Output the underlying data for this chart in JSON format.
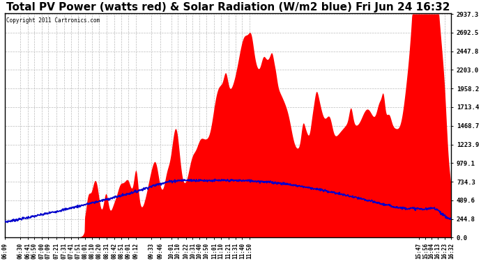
{
  "title": "Total PV Power (watts red) & Solar Radiation (W/m2 blue) Fri Jun 24 16:32",
  "copyright_text": "Copyright 2011 Cartronics.com",
  "yticks": [
    0.0,
    244.8,
    489.6,
    734.3,
    979.1,
    1223.9,
    1468.7,
    1713.4,
    1958.2,
    2203.0,
    2447.8,
    2692.5,
    2937.3
  ],
  "xtick_labels": [
    "06:09",
    "06:30",
    "06:41",
    "06:50",
    "07:00",
    "07:09",
    "07:21",
    "07:31",
    "07:41",
    "07:51",
    "08:01",
    "08:10",
    "08:20",
    "08:31",
    "08:42",
    "08:51",
    "09:01",
    "09:12",
    "09:33",
    "09:46",
    "10:01",
    "10:10",
    "10:22",
    "10:31",
    "10:40",
    "10:50",
    "11:01",
    "11:10",
    "11:21",
    "11:31",
    "11:40",
    "11:50",
    "15:47",
    "15:56",
    "16:04",
    "16:13",
    "16:23",
    "16:32"
  ],
  "bg_color": "#ffffff",
  "plot_bg_color": "#ffffff",
  "grid_color": "#bbbbbb",
  "red_color": "#ff0000",
  "blue_color": "#0000cc",
  "title_fontsize": 11,
  "ymax": 2937.3,
  "ymin": 0.0,
  "total_minutes": 623
}
